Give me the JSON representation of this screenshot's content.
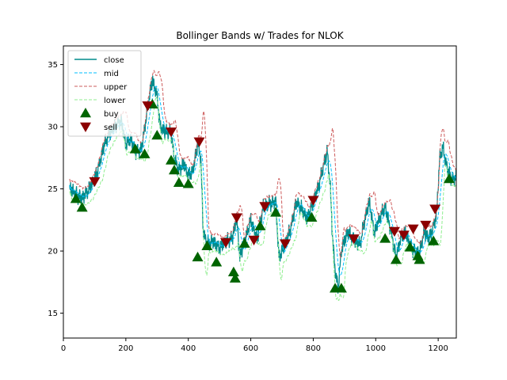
{
  "chart_data": {
    "type": "line",
    "title": "Bollinger Bands w/ Trades for NLOK",
    "xlabel": "",
    "ylabel": "",
    "xlim": [
      0,
      1258
    ],
    "ylim": [
      13,
      36.5
    ],
    "x_ticks": [
      0,
      200,
      400,
      600,
      800,
      1000,
      1200
    ],
    "y_ticks": [
      15,
      20,
      25,
      30,
      35
    ],
    "grid": false,
    "legend_position": "upper-left",
    "colors": {
      "close": "#008b8b",
      "mid": "#00bfff",
      "upper": "#cd5c5c",
      "lower": "#90ee90",
      "buy": "#006400",
      "sell": "#8b0000"
    },
    "legend": [
      {
        "key": "close",
        "label": "close"
      },
      {
        "key": "mid",
        "label": "mid"
      },
      {
        "key": "upper",
        "label": "upper"
      },
      {
        "key": "lower",
        "label": "lower"
      },
      {
        "key": "buy",
        "label": "buy"
      },
      {
        "key": "sell",
        "label": "sell"
      }
    ],
    "close_anchors": [
      [
        20,
        25.0
      ],
      [
        40,
        24.6
      ],
      [
        60,
        24.3
      ],
      [
        80,
        24.8
      ],
      [
        95,
        25.6
      ],
      [
        110,
        26.5
      ],
      [
        130,
        28.5
      ],
      [
        150,
        29.5
      ],
      [
        170,
        30.2
      ],
      [
        185,
        30.5
      ],
      [
        200,
        28.5
      ],
      [
        215,
        29.0
      ],
      [
        230,
        28.0
      ],
      [
        250,
        28.2
      ],
      [
        270,
        31.5
      ],
      [
        285,
        33.8
      ],
      [
        300,
        32.5
      ],
      [
        310,
        30.0
      ],
      [
        330,
        29.5
      ],
      [
        345,
        29.5
      ],
      [
        355,
        27.5
      ],
      [
        370,
        26.5
      ],
      [
        385,
        27.0
      ],
      [
        400,
        26.0
      ],
      [
        415,
        26.5
      ],
      [
        430,
        28.7
      ],
      [
        440,
        27.5
      ],
      [
        448,
        21.5
      ],
      [
        460,
        20.5
      ],
      [
        480,
        20.8
      ],
      [
        500,
        20.3
      ],
      [
        520,
        20.7
      ],
      [
        540,
        21.0
      ],
      [
        555,
        22.7
      ],
      [
        565,
        19.5
      ],
      [
        580,
        20.7
      ],
      [
        600,
        22.5
      ],
      [
        620,
        21.0
      ],
      [
        640,
        23.5
      ],
      [
        660,
        23.8
      ],
      [
        680,
        24.0
      ],
      [
        690,
        19.5
      ],
      [
        710,
        20.5
      ],
      [
        730,
        22.0
      ],
      [
        745,
        24.0
      ],
      [
        760,
        23.5
      ],
      [
        780,
        22.5
      ],
      [
        800,
        24.0
      ],
      [
        820,
        25.5
      ],
      [
        835,
        27.0
      ],
      [
        845,
        28.0
      ],
      [
        855,
        25.0
      ],
      [
        862,
        21.0
      ],
      [
        870,
        18.5
      ],
      [
        880,
        17.0
      ],
      [
        890,
        20.0
      ],
      [
        910,
        21.5
      ],
      [
        930,
        21.0
      ],
      [
        950,
        20.5
      ],
      [
        965,
        22.5
      ],
      [
        980,
        24.0
      ],
      [
        995,
        21.5
      ],
      [
        1010,
        22.5
      ],
      [
        1030,
        23.5
      ],
      [
        1050,
        21.5
      ],
      [
        1065,
        19.5
      ],
      [
        1080,
        21.0
      ],
      [
        1095,
        21.5
      ],
      [
        1110,
        20.5
      ],
      [
        1125,
        20.0
      ],
      [
        1140,
        19.8
      ],
      [
        1155,
        21.5
      ],
      [
        1170,
        21.0
      ],
      [
        1185,
        22.0
      ],
      [
        1195,
        23.0
      ],
      [
        1205,
        27.5
      ],
      [
        1215,
        28.3
      ],
      [
        1230,
        26.5
      ],
      [
        1245,
        25.8
      ],
      [
        1258,
        26.0
      ]
    ],
    "buy_markers": [
      [
        40,
        24.2
      ],
      [
        60,
        23.5
      ],
      [
        230,
        28.2
      ],
      [
        260,
        27.8
      ],
      [
        285,
        31.8
      ],
      [
        300,
        29.3
      ],
      [
        345,
        27.3
      ],
      [
        355,
        26.5
      ],
      [
        370,
        25.5
      ],
      [
        400,
        25.4
      ],
      [
        430,
        19.5
      ],
      [
        460,
        20.4
      ],
      [
        490,
        19.1
      ],
      [
        545,
        18.3
      ],
      [
        550,
        17.8
      ],
      [
        580,
        20.6
      ],
      [
        630,
        22.0
      ],
      [
        680,
        23.1
      ],
      [
        795,
        22.7
      ],
      [
        870,
        17.0
      ],
      [
        890,
        17.0
      ],
      [
        1030,
        21.0
      ],
      [
        1065,
        19.3
      ],
      [
        1110,
        20.3
      ],
      [
        1135,
        19.6
      ],
      [
        1140,
        19.3
      ],
      [
        1185,
        20.8
      ],
      [
        1235,
        25.8
      ]
    ],
    "sell_markers": [
      [
        100,
        25.6
      ],
      [
        270,
        31.7
      ],
      [
        345,
        29.6
      ],
      [
        435,
        28.8
      ],
      [
        520,
        20.7
      ],
      [
        555,
        22.7
      ],
      [
        610,
        20.9
      ],
      [
        645,
        23.6
      ],
      [
        710,
        20.6
      ],
      [
        800,
        24.1
      ],
      [
        930,
        21.0
      ],
      [
        1060,
        21.6
      ],
      [
        1090,
        21.3
      ],
      [
        1120,
        21.8
      ],
      [
        1160,
        22.1
      ],
      [
        1190,
        23.4
      ]
    ]
  }
}
